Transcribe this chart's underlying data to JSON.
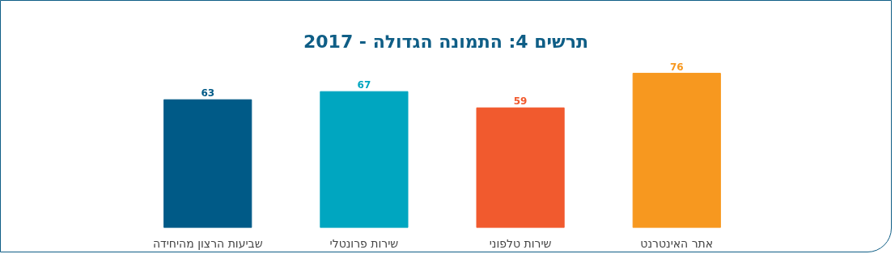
{
  "chart_data": {
    "type": "bar",
    "title": "תרשים 4: התמונה הגדולה - 2017",
    "categories": [
      "שביעות הרצון מהיחידה",
      "שירות פרונטלי",
      "שירות טלפוני",
      "אתר האינטרנט"
    ],
    "values": [
      63,
      67,
      59,
      76
    ],
    "colors": [
      "#005a87",
      "#00a6c0",
      "#f15a2e",
      "#f7981f"
    ],
    "data_labels": true
  }
}
